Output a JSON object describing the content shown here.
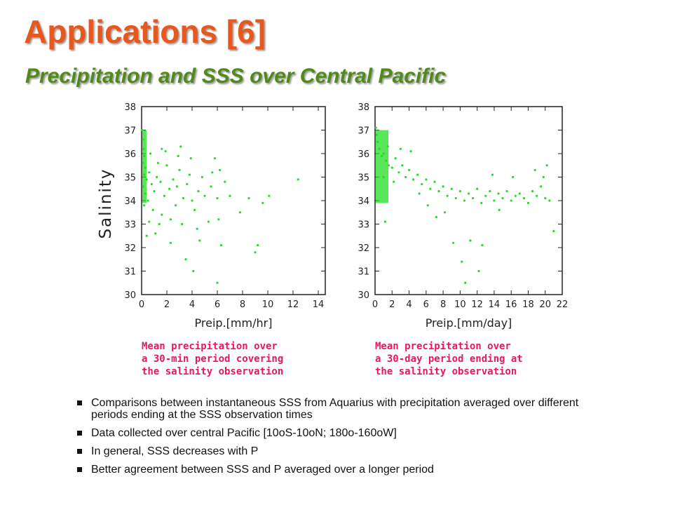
{
  "slide": {
    "title": "Applications [6]",
    "subtitle": "Precipitation and SSS over Central Pacific",
    "bullets": [
      "Comparisons between instantaneous SSS from Aquarius with precipitation averaged over different periods ending at the SSS observation times",
      "Data collected over central Pacific [10oS-10oN; 180o-160oW]",
      "In general, SSS decreases with P",
      "Better agreement between SSS and P averaged over a longer period"
    ]
  },
  "chart_data": [
    {
      "type": "scatter",
      "xlabel": "Preip.[mm/hr]",
      "ylabel": "Salinity",
      "xlim": [
        0,
        15
      ],
      "ylim": [
        30,
        38
      ],
      "xticks": [
        "0",
        "2",
        "4",
        "6",
        "8",
        "10",
        "12",
        "14"
      ],
      "yticks": [
        "30",
        "31",
        "32",
        "33",
        "34",
        "35",
        "36",
        "37",
        "38"
      ],
      "caption": [
        "Mean precipitation over",
        "a 30-min period covering",
        "the salinity observation"
      ],
      "color": "#22dd22",
      "grid": false,
      "points": [
        [
          0.05,
          37.0
        ],
        [
          0.1,
          36.6
        ],
        [
          0.15,
          36.2
        ],
        [
          0.2,
          35.9
        ],
        [
          0.1,
          35.6
        ],
        [
          0.3,
          35.4
        ],
        [
          0.2,
          35.1
        ],
        [
          0.4,
          34.9
        ],
        [
          0.1,
          34.6
        ],
        [
          0.3,
          34.3
        ],
        [
          0.5,
          34.0
        ],
        [
          0.2,
          33.8
        ],
        [
          0.6,
          35.2
        ],
        [
          0.8,
          34.7
        ],
        [
          1.0,
          34.4
        ],
        [
          0.7,
          36.0
        ],
        [
          1.2,
          35.0
        ],
        [
          0.9,
          33.6
        ],
        [
          1.5,
          34.8
        ],
        [
          1.3,
          35.6
        ],
        [
          1.8,
          34.2
        ],
        [
          1.6,
          33.4
        ],
        [
          2.0,
          35.5
        ],
        [
          2.2,
          34.5
        ],
        [
          1.9,
          36.1
        ],
        [
          2.5,
          34.9
        ],
        [
          2.3,
          33.2
        ],
        [
          2.8,
          34.6
        ],
        [
          3.0,
          35.3
        ],
        [
          2.7,
          33.8
        ],
        [
          3.3,
          34.1
        ],
        [
          3.6,
          34.7
        ],
        [
          3.2,
          33.0
        ],
        [
          3.8,
          35.1
        ],
        [
          4.0,
          34.0
        ],
        [
          4.2,
          33.6
        ],
        [
          3.9,
          35.8
        ],
        [
          4.5,
          34.4
        ],
        [
          4.4,
          32.8
        ],
        [
          4.8,
          35.0
        ],
        [
          5.0,
          34.2
        ],
        [
          5.3,
          33.1
        ],
        [
          5.6,
          35.2
        ],
        [
          5.5,
          34.6
        ],
        [
          6.0,
          34.1
        ],
        [
          6.2,
          35.3
        ],
        [
          6.1,
          33.2
        ],
        [
          6.6,
          34.8
        ],
        [
          7.0,
          34.2
        ],
        [
          3.5,
          31.5
        ],
        [
          4.1,
          31.0
        ],
        [
          6.0,
          30.5
        ],
        [
          2.3,
          32.2
        ],
        [
          9.2,
          32.1
        ],
        [
          9.0,
          31.8
        ],
        [
          9.6,
          33.9
        ],
        [
          10.1,
          34.2
        ],
        [
          12.4,
          34.9
        ],
        [
          6.3,
          32.1
        ],
        [
          4.6,
          32.3
        ],
        [
          1.1,
          32.6
        ],
        [
          0.4,
          32.5
        ],
        [
          7.8,
          33.5
        ],
        [
          8.5,
          34.1
        ],
        [
          5.8,
          35.8
        ],
        [
          3.1,
          36.3
        ],
        [
          1.6,
          36.2
        ],
        [
          2.9,
          35.9
        ],
        [
          0.6,
          33.1
        ],
        [
          1.4,
          33.0
        ]
      ]
    },
    {
      "type": "scatter",
      "xlabel": "Preip.[mm/day]",
      "ylabel": "",
      "xlim": [
        0,
        22
      ],
      "ylim": [
        30,
        38
      ],
      "xticks": [
        "0",
        "2",
        "4",
        "6",
        "8",
        "10",
        "12",
        "14",
        "16",
        "18",
        "20",
        "22"
      ],
      "yticks": [
        "30",
        "31",
        "32",
        "33",
        "34",
        "35",
        "36",
        "37",
        "38"
      ],
      "caption": [
        "Mean precipitation over",
        "a 30-day period ending at",
        "the salinity observation"
      ],
      "color": "#22dd22",
      "grid": false,
      "points": [
        [
          0.1,
          37.1
        ],
        [
          0.2,
          36.8
        ],
        [
          0.3,
          36.5
        ],
        [
          0.5,
          36.2
        ],
        [
          0.8,
          35.9
        ],
        [
          1.0,
          36.0
        ],
        [
          1.3,
          35.7
        ],
        [
          1.6,
          35.5
        ],
        [
          2.0,
          35.4
        ],
        [
          2.4,
          35.8
        ],
        [
          2.8,
          35.2
        ],
        [
          3.2,
          35.5
        ],
        [
          3.6,
          35.0
        ],
        [
          4.0,
          35.3
        ],
        [
          4.5,
          34.9
        ],
        [
          5.0,
          35.1
        ],
        [
          5.5,
          34.7
        ],
        [
          6.0,
          34.9
        ],
        [
          6.5,
          34.5
        ],
        [
          7.0,
          34.8
        ],
        [
          7.5,
          34.4
        ],
        [
          8.0,
          34.6
        ],
        [
          8.5,
          34.2
        ],
        [
          9.0,
          34.5
        ],
        [
          9.5,
          34.1
        ],
        [
          10.0,
          34.4
        ],
        [
          10.5,
          34.0
        ],
        [
          11.0,
          34.3
        ],
        [
          11.5,
          34.1
        ],
        [
          12.0,
          34.5
        ],
        [
          12.5,
          33.9
        ],
        [
          13.0,
          34.2
        ],
        [
          13.5,
          34.4
        ],
        [
          14.0,
          34.0
        ],
        [
          14.5,
          34.3
        ],
        [
          15.0,
          34.1
        ],
        [
          15.5,
          34.4
        ],
        [
          16.0,
          34.0
        ],
        [
          16.5,
          34.2
        ],
        [
          17.0,
          34.3
        ],
        [
          17.5,
          34.1
        ],
        [
          18.0,
          33.9
        ],
        [
          18.5,
          34.4
        ],
        [
          19.0,
          34.2
        ],
        [
          19.5,
          34.6
        ],
        [
          20.0,
          34.1
        ],
        [
          20.5,
          34.0
        ],
        [
          21.0,
          32.7
        ],
        [
          1.0,
          35.0
        ],
        [
          1.5,
          36.3
        ],
        [
          2.2,
          34.8
        ],
        [
          3.0,
          36.2
        ],
        [
          4.2,
          36.1
        ],
        [
          5.2,
          34.3
        ],
        [
          6.2,
          33.8
        ],
        [
          7.2,
          33.3
        ],
        [
          8.2,
          33.5
        ],
        [
          9.2,
          32.2
        ],
        [
          10.2,
          31.4
        ],
        [
          11.2,
          32.3
        ],
        [
          12.2,
          31.0
        ],
        [
          10.6,
          30.5
        ],
        [
          12.6,
          32.1
        ],
        [
          1.2,
          33.1
        ],
        [
          13.8,
          35.1
        ],
        [
          16.2,
          35.0
        ],
        [
          18.8,
          35.3
        ],
        [
          19.8,
          35.0
        ],
        [
          20.2,
          35.5
        ],
        [
          14.6,
          33.6
        ]
      ]
    }
  ]
}
